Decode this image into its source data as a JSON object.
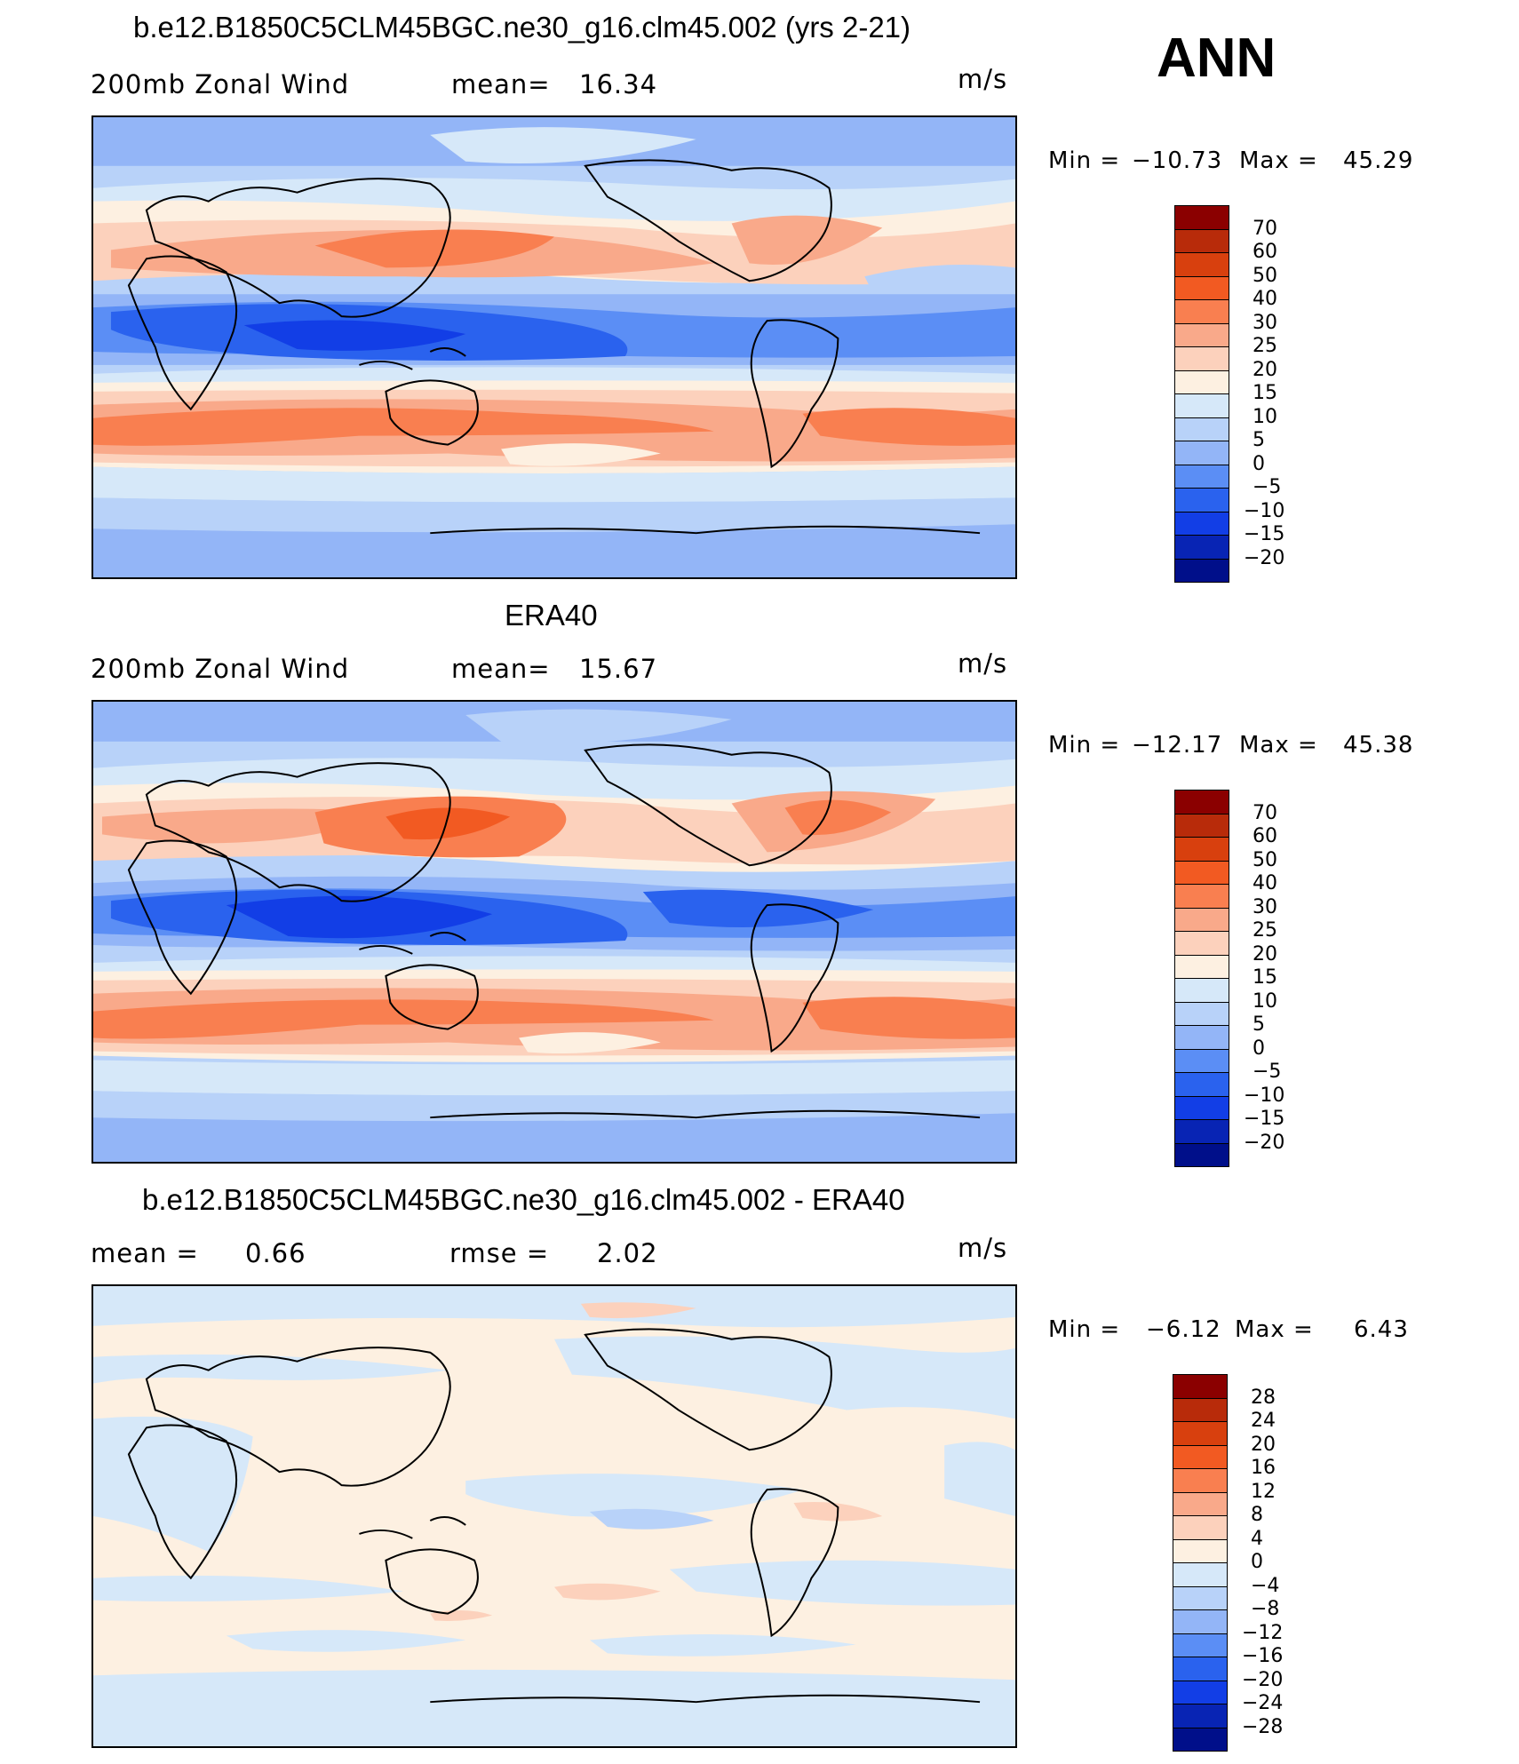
{
  "season": "ANN",
  "units": "m/s",
  "panels": [
    {
      "title": "b.e12.B1850C5CLM45BGC.ne30_g16.clm45.002 (yrs 2-21)",
      "left_label": "200mb Zonal Wind",
      "stat_label": "mean=",
      "stat_value": "16.34",
      "min_label": "Min =",
      "min_value": "−10.73",
      "max_label": "Max =",
      "max_value": "45.29",
      "levels": [
        "70",
        "60",
        "50",
        "40",
        "30",
        "25",
        "20",
        "15",
        "10",
        "5",
        "0",
        "−5",
        "−10",
        "−15",
        "−20"
      ],
      "colors": [
        "#8b0000",
        "#b82b0a",
        "#d8400e",
        "#f25a22",
        "#f97f50",
        "#f9a98a",
        "#fcd1bc",
        "#fdf0e1",
        "#d6e8f9",
        "#b8d2f9",
        "#93b5f7",
        "#5b8ef5",
        "#2a62ee",
        "#123ee6",
        "#0824b4",
        "#000f8a"
      ]
    },
    {
      "title": "ERA40",
      "left_label": "200mb Zonal Wind",
      "stat_label": "mean=",
      "stat_value": "15.67",
      "min_label": "Min =",
      "min_value": "−12.17",
      "max_label": "Max =",
      "max_value": "45.38",
      "levels": [
        "70",
        "60",
        "50",
        "40",
        "30",
        "25",
        "20",
        "15",
        "10",
        "5",
        "0",
        "−5",
        "−10",
        "−15",
        "−20"
      ],
      "colors": [
        "#8b0000",
        "#b82b0a",
        "#d8400e",
        "#f25a22",
        "#f97f50",
        "#f9a98a",
        "#fcd1bc",
        "#fdf0e1",
        "#d6e8f9",
        "#b8d2f9",
        "#93b5f7",
        "#5b8ef5",
        "#2a62ee",
        "#123ee6",
        "#0824b4",
        "#000f8a"
      ]
    },
    {
      "title": "b.e12.B1850C5CLM45BGC.ne30_g16.clm45.002 - ERA40",
      "left_label": "mean =",
      "left_value": "0.66",
      "stat_label": "rmse =",
      "stat_value": "2.02",
      "min_label": "Min =",
      "min_value": "−6.12",
      "max_label": "Max =",
      "max_value": "6.43",
      "levels": [
        "28",
        "24",
        "20",
        "16",
        "12",
        "8",
        "4",
        "0",
        "−4",
        "−8",
        "−12",
        "−16",
        "−20",
        "−24",
        "−28"
      ],
      "colors": [
        "#8b0000",
        "#b82b0a",
        "#d8400e",
        "#f25a22",
        "#f97f50",
        "#f9a98a",
        "#fcd1bc",
        "#fdf0e1",
        "#d6e8f9",
        "#b8d2f9",
        "#93b5f7",
        "#5b8ef5",
        "#2a62ee",
        "#123ee6",
        "#0824b4",
        "#000f8a"
      ]
    }
  ]
}
